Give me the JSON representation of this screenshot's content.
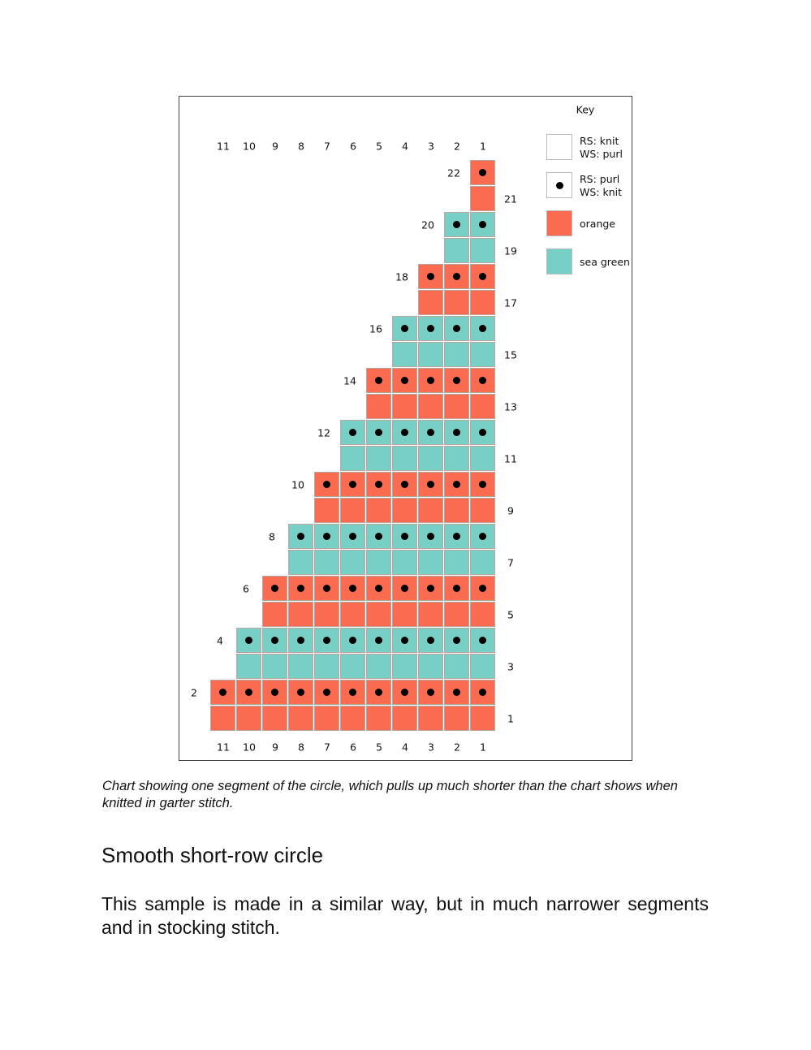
{
  "chart_data": {
    "type": "table",
    "title": "Key",
    "columns": [
      11,
      10,
      9,
      8,
      7,
      6,
      5,
      4,
      3,
      2,
      1
    ],
    "colors": {
      "orange": "#fb6b50",
      "sea green": "#77cfc6"
    },
    "rows": [
      {
        "row": 1,
        "width": 11,
        "color": "orange",
        "dots": false
      },
      {
        "row": 2,
        "width": 11,
        "color": "orange",
        "dots": true
      },
      {
        "row": 3,
        "width": 10,
        "color": "sea green",
        "dots": false
      },
      {
        "row": 4,
        "width": 10,
        "color": "sea green",
        "dots": true
      },
      {
        "row": 5,
        "width": 9,
        "color": "orange",
        "dots": false
      },
      {
        "row": 6,
        "width": 9,
        "color": "orange",
        "dots": true
      },
      {
        "row": 7,
        "width": 8,
        "color": "sea green",
        "dots": false
      },
      {
        "row": 8,
        "width": 8,
        "color": "sea green",
        "dots": true
      },
      {
        "row": 9,
        "width": 7,
        "color": "orange",
        "dots": false
      },
      {
        "row": 10,
        "width": 7,
        "color": "orange",
        "dots": true
      },
      {
        "row": 11,
        "width": 6,
        "color": "sea green",
        "dots": false
      },
      {
        "row": 12,
        "width": 6,
        "color": "sea green",
        "dots": true
      },
      {
        "row": 13,
        "width": 5,
        "color": "orange",
        "dots": false
      },
      {
        "row": 14,
        "width": 5,
        "color": "orange",
        "dots": true
      },
      {
        "row": 15,
        "width": 4,
        "color": "sea green",
        "dots": false
      },
      {
        "row": 16,
        "width": 4,
        "color": "sea green",
        "dots": true
      },
      {
        "row": 17,
        "width": 3,
        "color": "orange",
        "dots": false
      },
      {
        "row": 18,
        "width": 3,
        "color": "orange",
        "dots": true
      },
      {
        "row": 19,
        "width": 2,
        "color": "sea green",
        "dots": false
      },
      {
        "row": 20,
        "width": 2,
        "color": "sea green",
        "dots": true
      },
      {
        "row": 21,
        "width": 1,
        "color": "orange",
        "dots": false
      },
      {
        "row": 22,
        "width": 1,
        "color": "orange",
        "dots": true
      }
    ],
    "key": [
      {
        "symbol": "blank",
        "label": "RS: knit\nWS: purl"
      },
      {
        "symbol": "dot",
        "label": "RS: purl\nWS: knit"
      },
      {
        "symbol": "orange",
        "label": "orange"
      },
      {
        "symbol": "sea green",
        "label": "sea green"
      }
    ]
  },
  "caption": "Chart showing one segment of the circle, which pulls up much shorter than the chart shows when knitted in garter stitch.",
  "heading": "Smooth short-row circle",
  "body": "This sample is made in a similar way, but in much narrower segments and in stocking stitch."
}
